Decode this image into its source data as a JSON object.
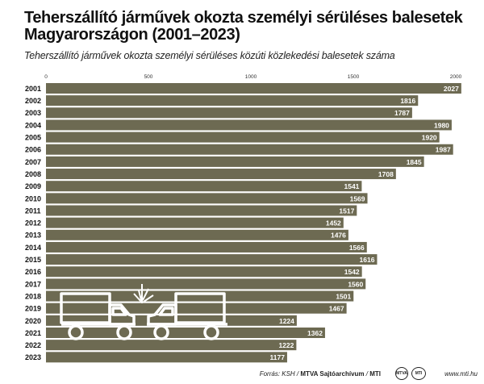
{
  "title": "Teherszállító járművek okozta személyi sérüléses balesetek Magyarországon (2001–2023)",
  "subtitle": "Teherszállító járművek okozta személyi sérüléses közúti közlekedési balesetek száma",
  "chart_data": {
    "type": "bar",
    "orientation": "horizontal",
    "categories": [
      "2001",
      "2002",
      "2003",
      "2004",
      "2005",
      "2006",
      "2007",
      "2008",
      "2009",
      "2010",
      "2011",
      "2012",
      "2013",
      "2014",
      "2015",
      "2016",
      "2017",
      "2018",
      "2019",
      "2020",
      "2021",
      "2022",
      "2023"
    ],
    "values": [
      2027,
      1816,
      1787,
      1980,
      1920,
      1987,
      1845,
      1708,
      1541,
      1569,
      1517,
      1452,
      1476,
      1566,
      1616,
      1542,
      1560,
      1501,
      1467,
      1224,
      1362,
      1222,
      1177
    ],
    "xticks": [
      0,
      500,
      1000,
      1500,
      2000
    ],
    "xlim": [
      0,
      2000
    ],
    "grid": false,
    "bar_color": "#6d6a52",
    "label_color": "#ffffff"
  },
  "footer": {
    "source_prefix": "Forrás: KSH /",
    "source_archive": "MTVA Sajtóarchívum",
    "source_sep": "/",
    "source_agency": "MTI",
    "logo1_text": "MTVA",
    "logo2_text": "MTI",
    "site": "www.mti.hu"
  }
}
